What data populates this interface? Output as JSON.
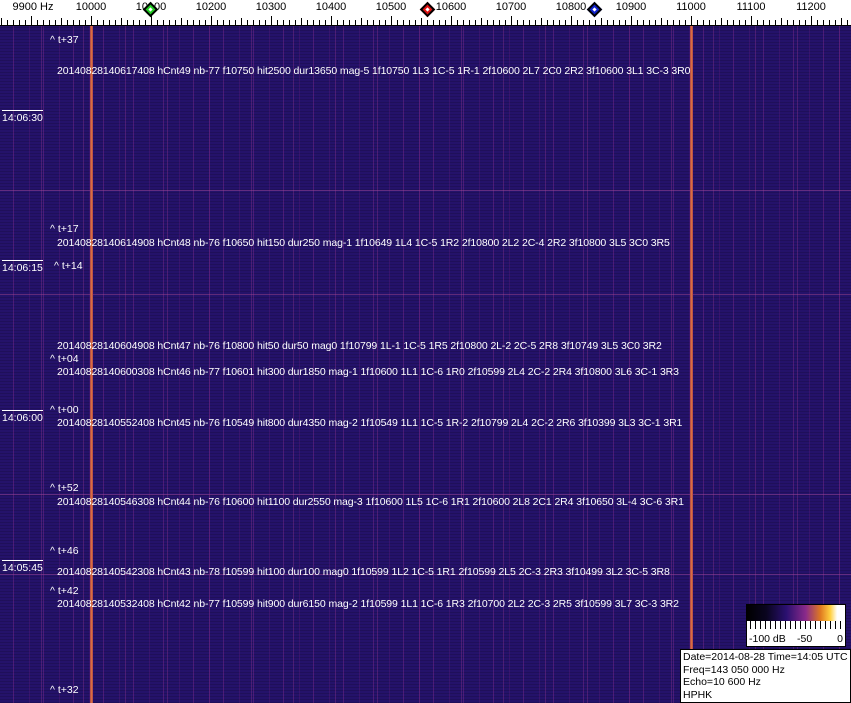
{
  "axis": {
    "ticks": [
      {
        "hz": 9900,
        "label": "9900 Hz"
      },
      {
        "hz": 10000,
        "label": "10000"
      },
      {
        "hz": 10100,
        "label": "10100"
      },
      {
        "hz": 10200,
        "label": "10200"
      },
      {
        "hz": 10300,
        "label": "10300"
      },
      {
        "hz": 10400,
        "label": "10400"
      },
      {
        "hz": 10500,
        "label": "10500"
      },
      {
        "hz": 10600,
        "label": "10600"
      },
      {
        "hz": 10700,
        "label": "10700"
      },
      {
        "hz": 10800,
        "label": "10800"
      },
      {
        "hz": 10900,
        "label": "10900"
      },
      {
        "hz": 11000,
        "label": "11000"
      },
      {
        "hz": 11100,
        "label": "11100"
      },
      {
        "hz": 11200,
        "label": "11200"
      }
    ],
    "markers": [
      {
        "name": "green-marker",
        "hz": 10100,
        "color": "#22cc22"
      },
      {
        "name": "red-marker",
        "hz": 10562,
        "color": "#dd1111"
      },
      {
        "name": "blue-marker",
        "hz": 10840,
        "color": "#1122cc"
      }
    ]
  },
  "waterfall": {
    "strong_lines_hz": [
      10000,
      11000
    ],
    "time_labels": [
      "14:06:30",
      "14:06:15",
      "14:06:00",
      "14:05:45"
    ],
    "offset_labels": [
      "^ t+37",
      "^ t+17",
      "^ t+14",
      "^ t+04",
      "^ t+00",
      "^ t+52",
      "^ t+46",
      "^ t+42",
      "^ t+32"
    ],
    "detections": [
      "20140828140617408 hCnt49 nb-77 f10750 hit2500 dur13650 mag-5 1f10750 1L3 1C-5 1R-1 2f10600 2L7 2C0 2R2 3f10600 3L1 3C-3 3R0",
      "20140828140614908 hCnt48 nb-76 f10650 hit150 dur250 mag-1 1f10649 1L4 1C-5 1R2 2f10800 2L2 2C-4 2R2 3f10800 3L5 3C0 3R5",
      "20140828140604908 hCnt47 nb-76 f10800 hit50 dur50 mag0 1f10799 1L-1 1C-5 1R5 2f10800 2L-2 2C-5 2R8 3f10749 3L5 3C0 3R2",
      "20140828140600308 hCnt46 nb-77 f10601 hit300 dur1850 mag-1 1f10600 1L1 1C-6 1R0 2f10599 2L4 2C-2 2R4 3f10800 3L6 3C-1 3R3",
      "20140828140552408 hCnt45 nb-76 f10549 hit800 dur4350 mag-2 1f10549 1L1 1C-5 1R-2 2f10799 2L4 2C-2 2R6 3f10399 3L3 3C-1 3R1",
      "20140828140546308 hCnt44 nb-76 f10600 hit1100 dur2550 mag-3 1f10600 1L5 1C-6 1R1 2f10600 2L8 2C1 2R4 3f10650 3L-4 3C-6 3R1",
      "20140828140542308 hCnt43 nb-78 f10599 hit100 dur100 mag0 1f10599 1L2 1C-5 1R1 2f10599 2L5 2C-3 2R3 3f10499 3L2 3C-5 3R8",
      "20140828140532408 hCnt42 nb-77 f10599 hit900 dur6150 mag-2 1f10599 1L1 1C-6 1R3 2f10700 2L2 2C-3 2R5 3f10599 3L7 3C-3 3R2"
    ]
  },
  "color_scale": {
    "labels": [
      "-100 dB",
      "-50",
      "0"
    ]
  },
  "info": {
    "date_time": "Date=2014-08-28 Time=14:05 UTC",
    "freq": "Freq=143 050 000 Hz",
    "echo": "Echo=10 600 Hz",
    "station": "HPHK"
  }
}
